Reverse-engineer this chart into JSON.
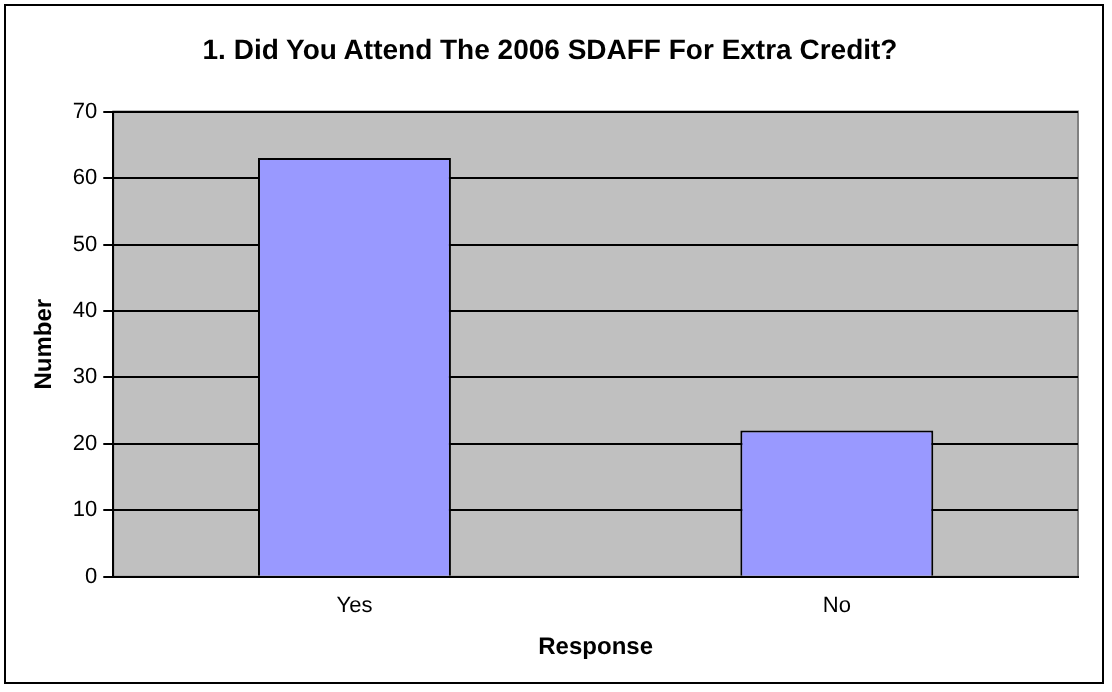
{
  "chart_data": {
    "type": "bar",
    "title": "1. Did You Attend The 2006 SDAFF For Extra Credit?",
    "xlabel": "Response",
    "ylabel": "Number",
    "categories": [
      "Yes",
      "No"
    ],
    "values": [
      63,
      22
    ],
    "color": "#9999ff",
    "ylim": [
      0,
      70
    ],
    "yticks": [
      0,
      10,
      20,
      30,
      40,
      50,
      60,
      70
    ],
    "grid": "y",
    "legend": false
  }
}
